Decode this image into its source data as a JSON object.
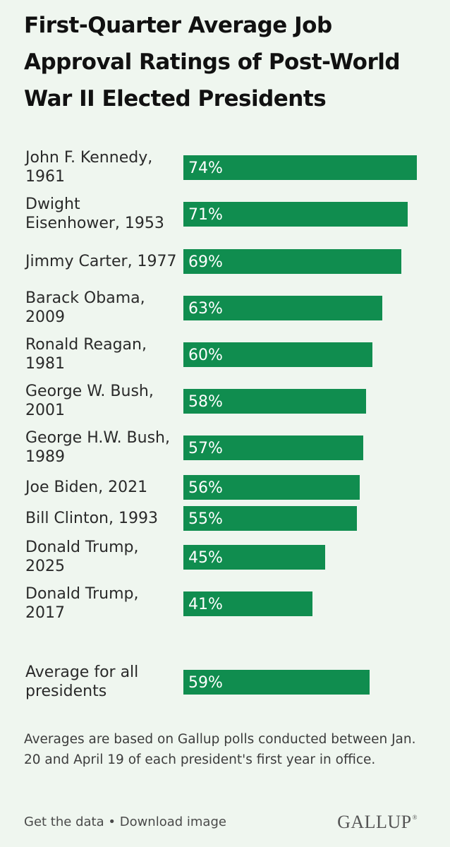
{
  "title": "First-Quarter Average Job Approval Ratings of Post-World War II Elected Presidents",
  "note": "Averages are based on Gallup polls conducted between Jan. 20 and April 19 of each president's first year in office.",
  "footer": {
    "get_data": "Get the data",
    "separator": "•",
    "download": "Download image",
    "brand": "GALLUP",
    "brand_mark": "®"
  },
  "colors": {
    "bar": "#108d4f",
    "background": "#eff6ef"
  },
  "chart_data": {
    "type": "bar",
    "orientation": "horizontal",
    "unit": "%",
    "categories": [
      "John F. Kennedy, 1961",
      "Dwight Eisenhower, 1953",
      "Jimmy Carter, 1977",
      "Barack Obama, 2009",
      "Ronald Reagan, 1981",
      "George W. Bush, 2001",
      "George H.W. Bush, 1989",
      "Joe Biden, 2021",
      "Bill Clinton, 1993",
      "Donald Trump, 2025",
      "Donald Trump, 2017",
      "Average for all presidents"
    ],
    "values": [
      74,
      71,
      69,
      63,
      60,
      58,
      57,
      56,
      55,
      45,
      41,
      59
    ],
    "labels": [
      "74%",
      "71%",
      "69%",
      "63%",
      "60%",
      "58%",
      "57%",
      "56%",
      "55%",
      "45%",
      "41%",
      "59%"
    ],
    "xlim": [
      0,
      74
    ],
    "grid": false
  }
}
